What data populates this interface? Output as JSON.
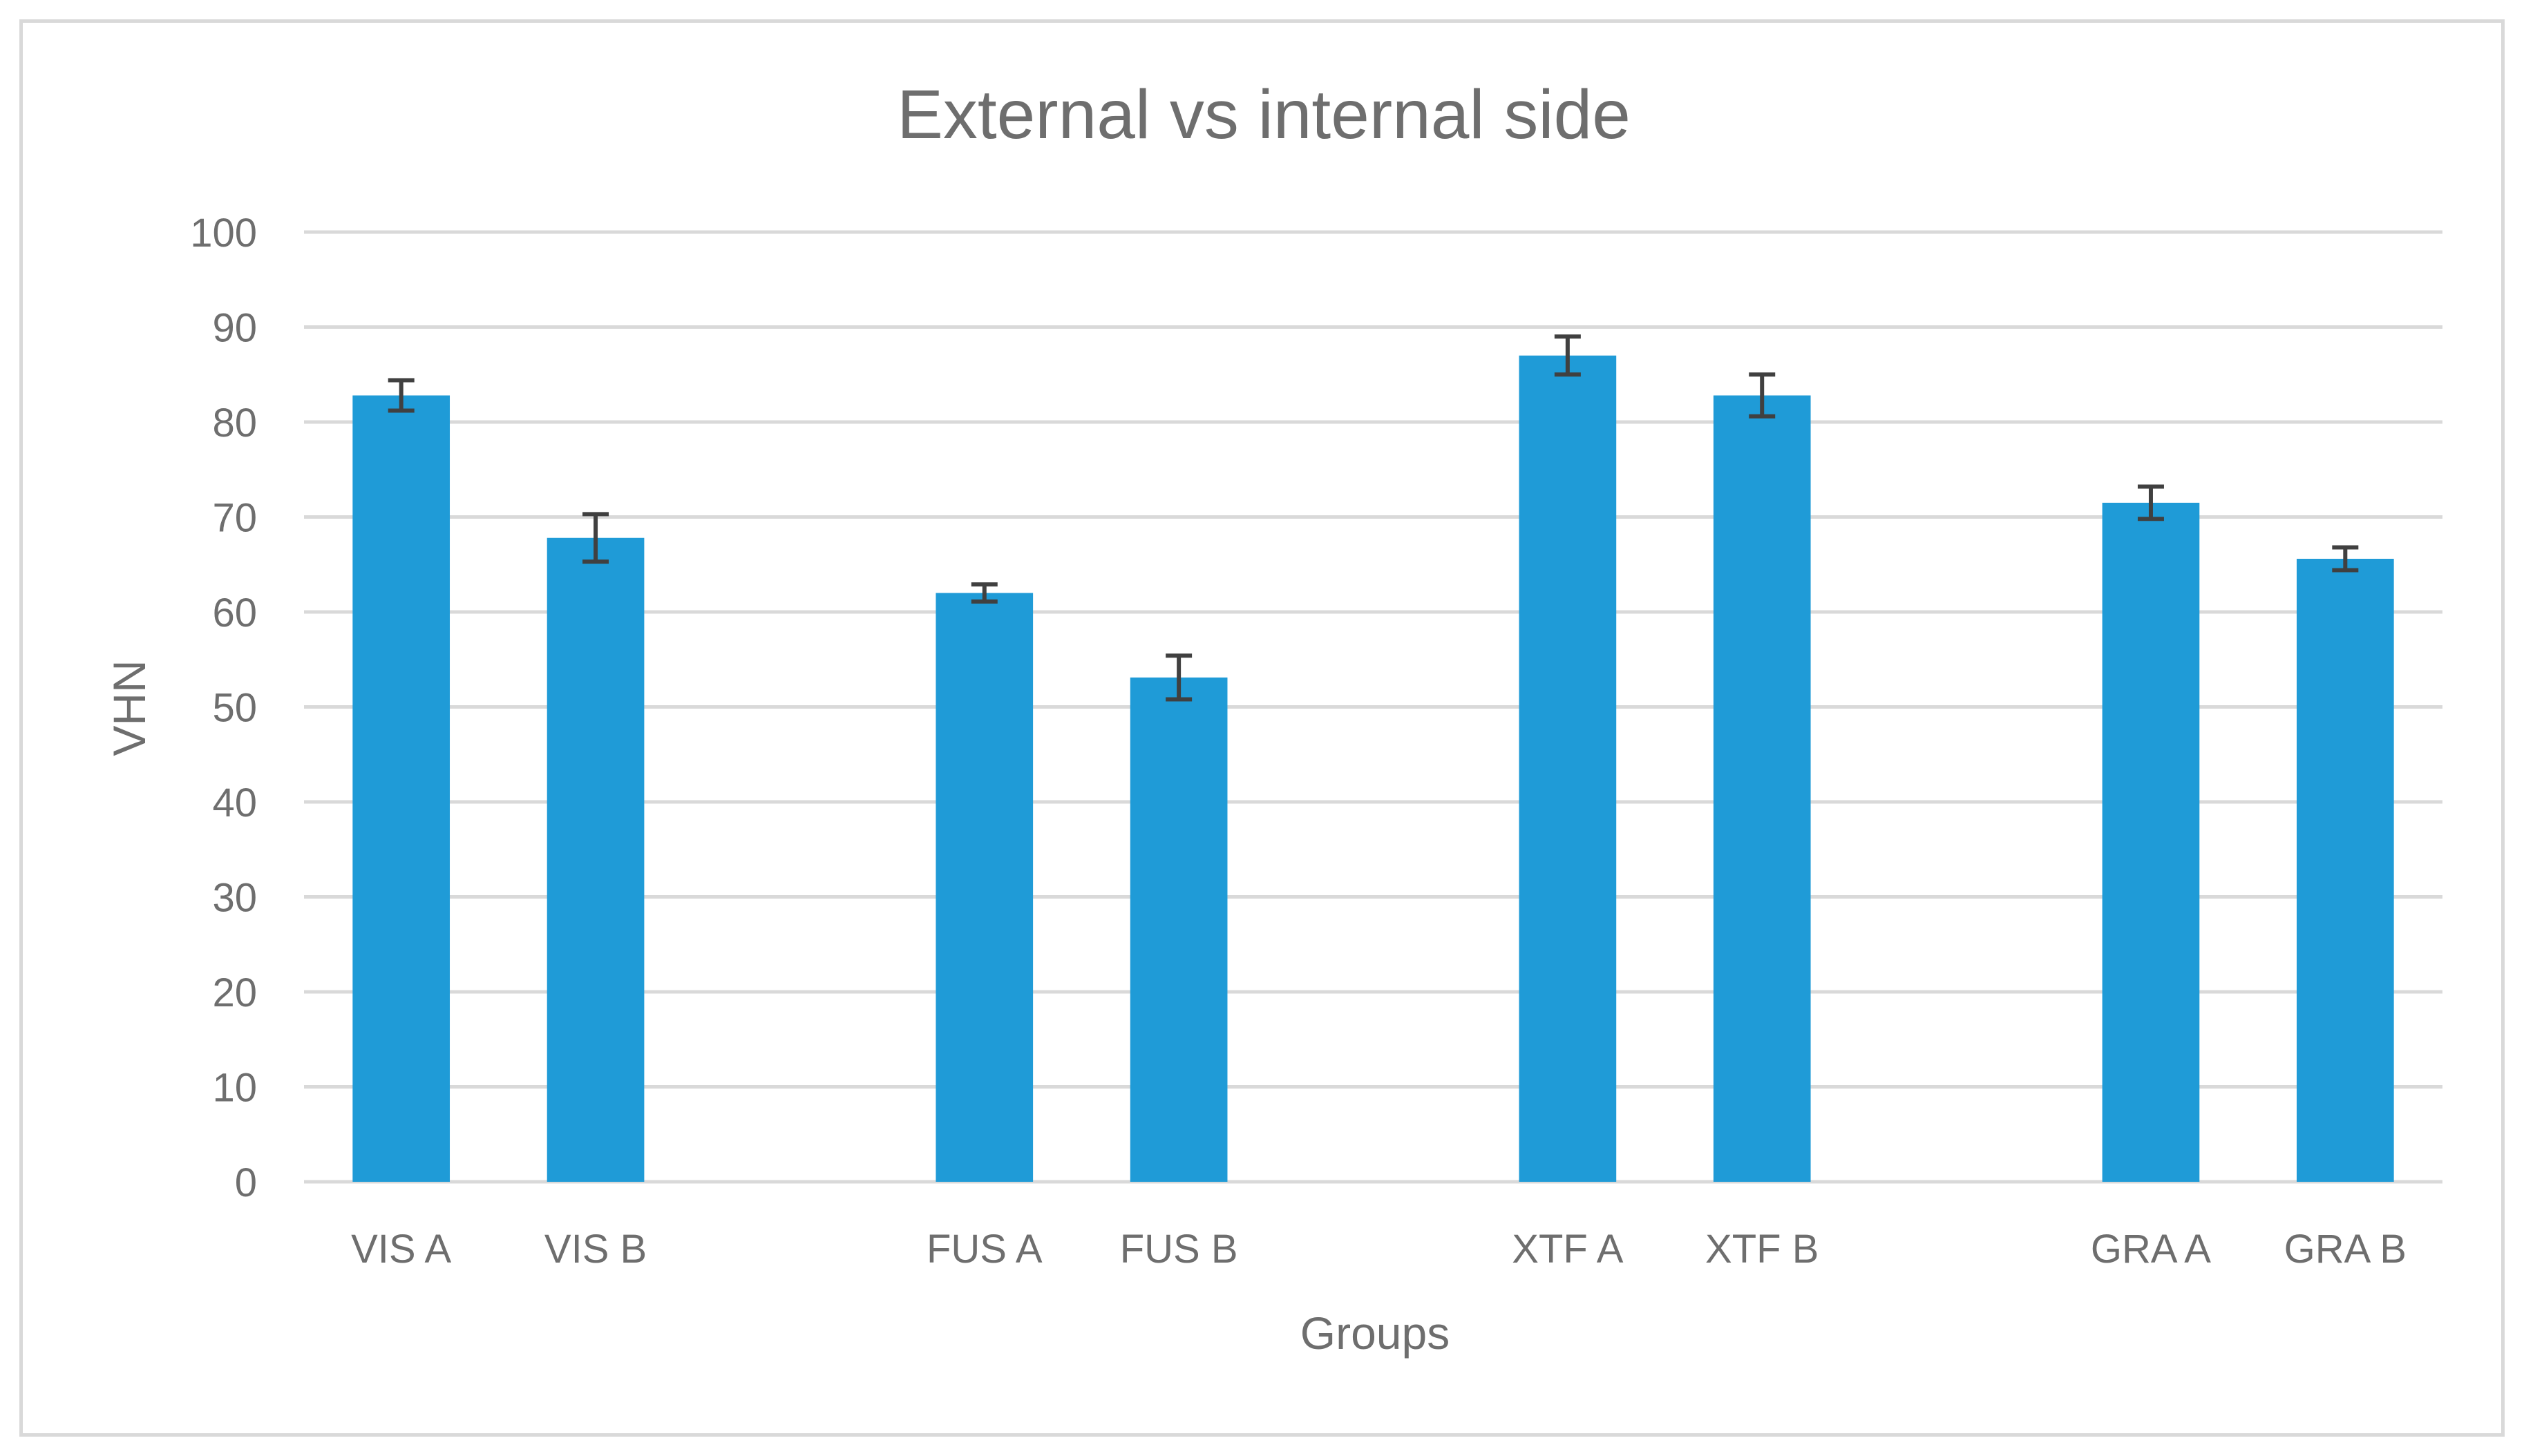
{
  "chart_data": {
    "type": "bar",
    "title": "External vs internal side",
    "xlabel": "Groups",
    "ylabel": "VHN",
    "ylim": [
      0,
      100
    ],
    "yticks": [
      0,
      10,
      20,
      30,
      40,
      50,
      60,
      70,
      80,
      90,
      100
    ],
    "grid": true,
    "categories": [
      "VIS A",
      "VIS B",
      "",
      "FUS A",
      "FUS B",
      "",
      "XTF A",
      "XTF B",
      "",
      "GRA A",
      "GRA B"
    ],
    "values": [
      82.8,
      67.8,
      null,
      62.0,
      53.1,
      null,
      87.0,
      82.8,
      null,
      71.5,
      65.6
    ],
    "errors": [
      1.6,
      2.5,
      null,
      0.9,
      2.3,
      null,
      2.0,
      2.2,
      null,
      1.7,
      1.2
    ],
    "colors": {
      "bar": "#1f9bd7",
      "error_bar": "#404040",
      "grid": "#d9d9d9",
      "text": "#6e6e6e"
    }
  }
}
